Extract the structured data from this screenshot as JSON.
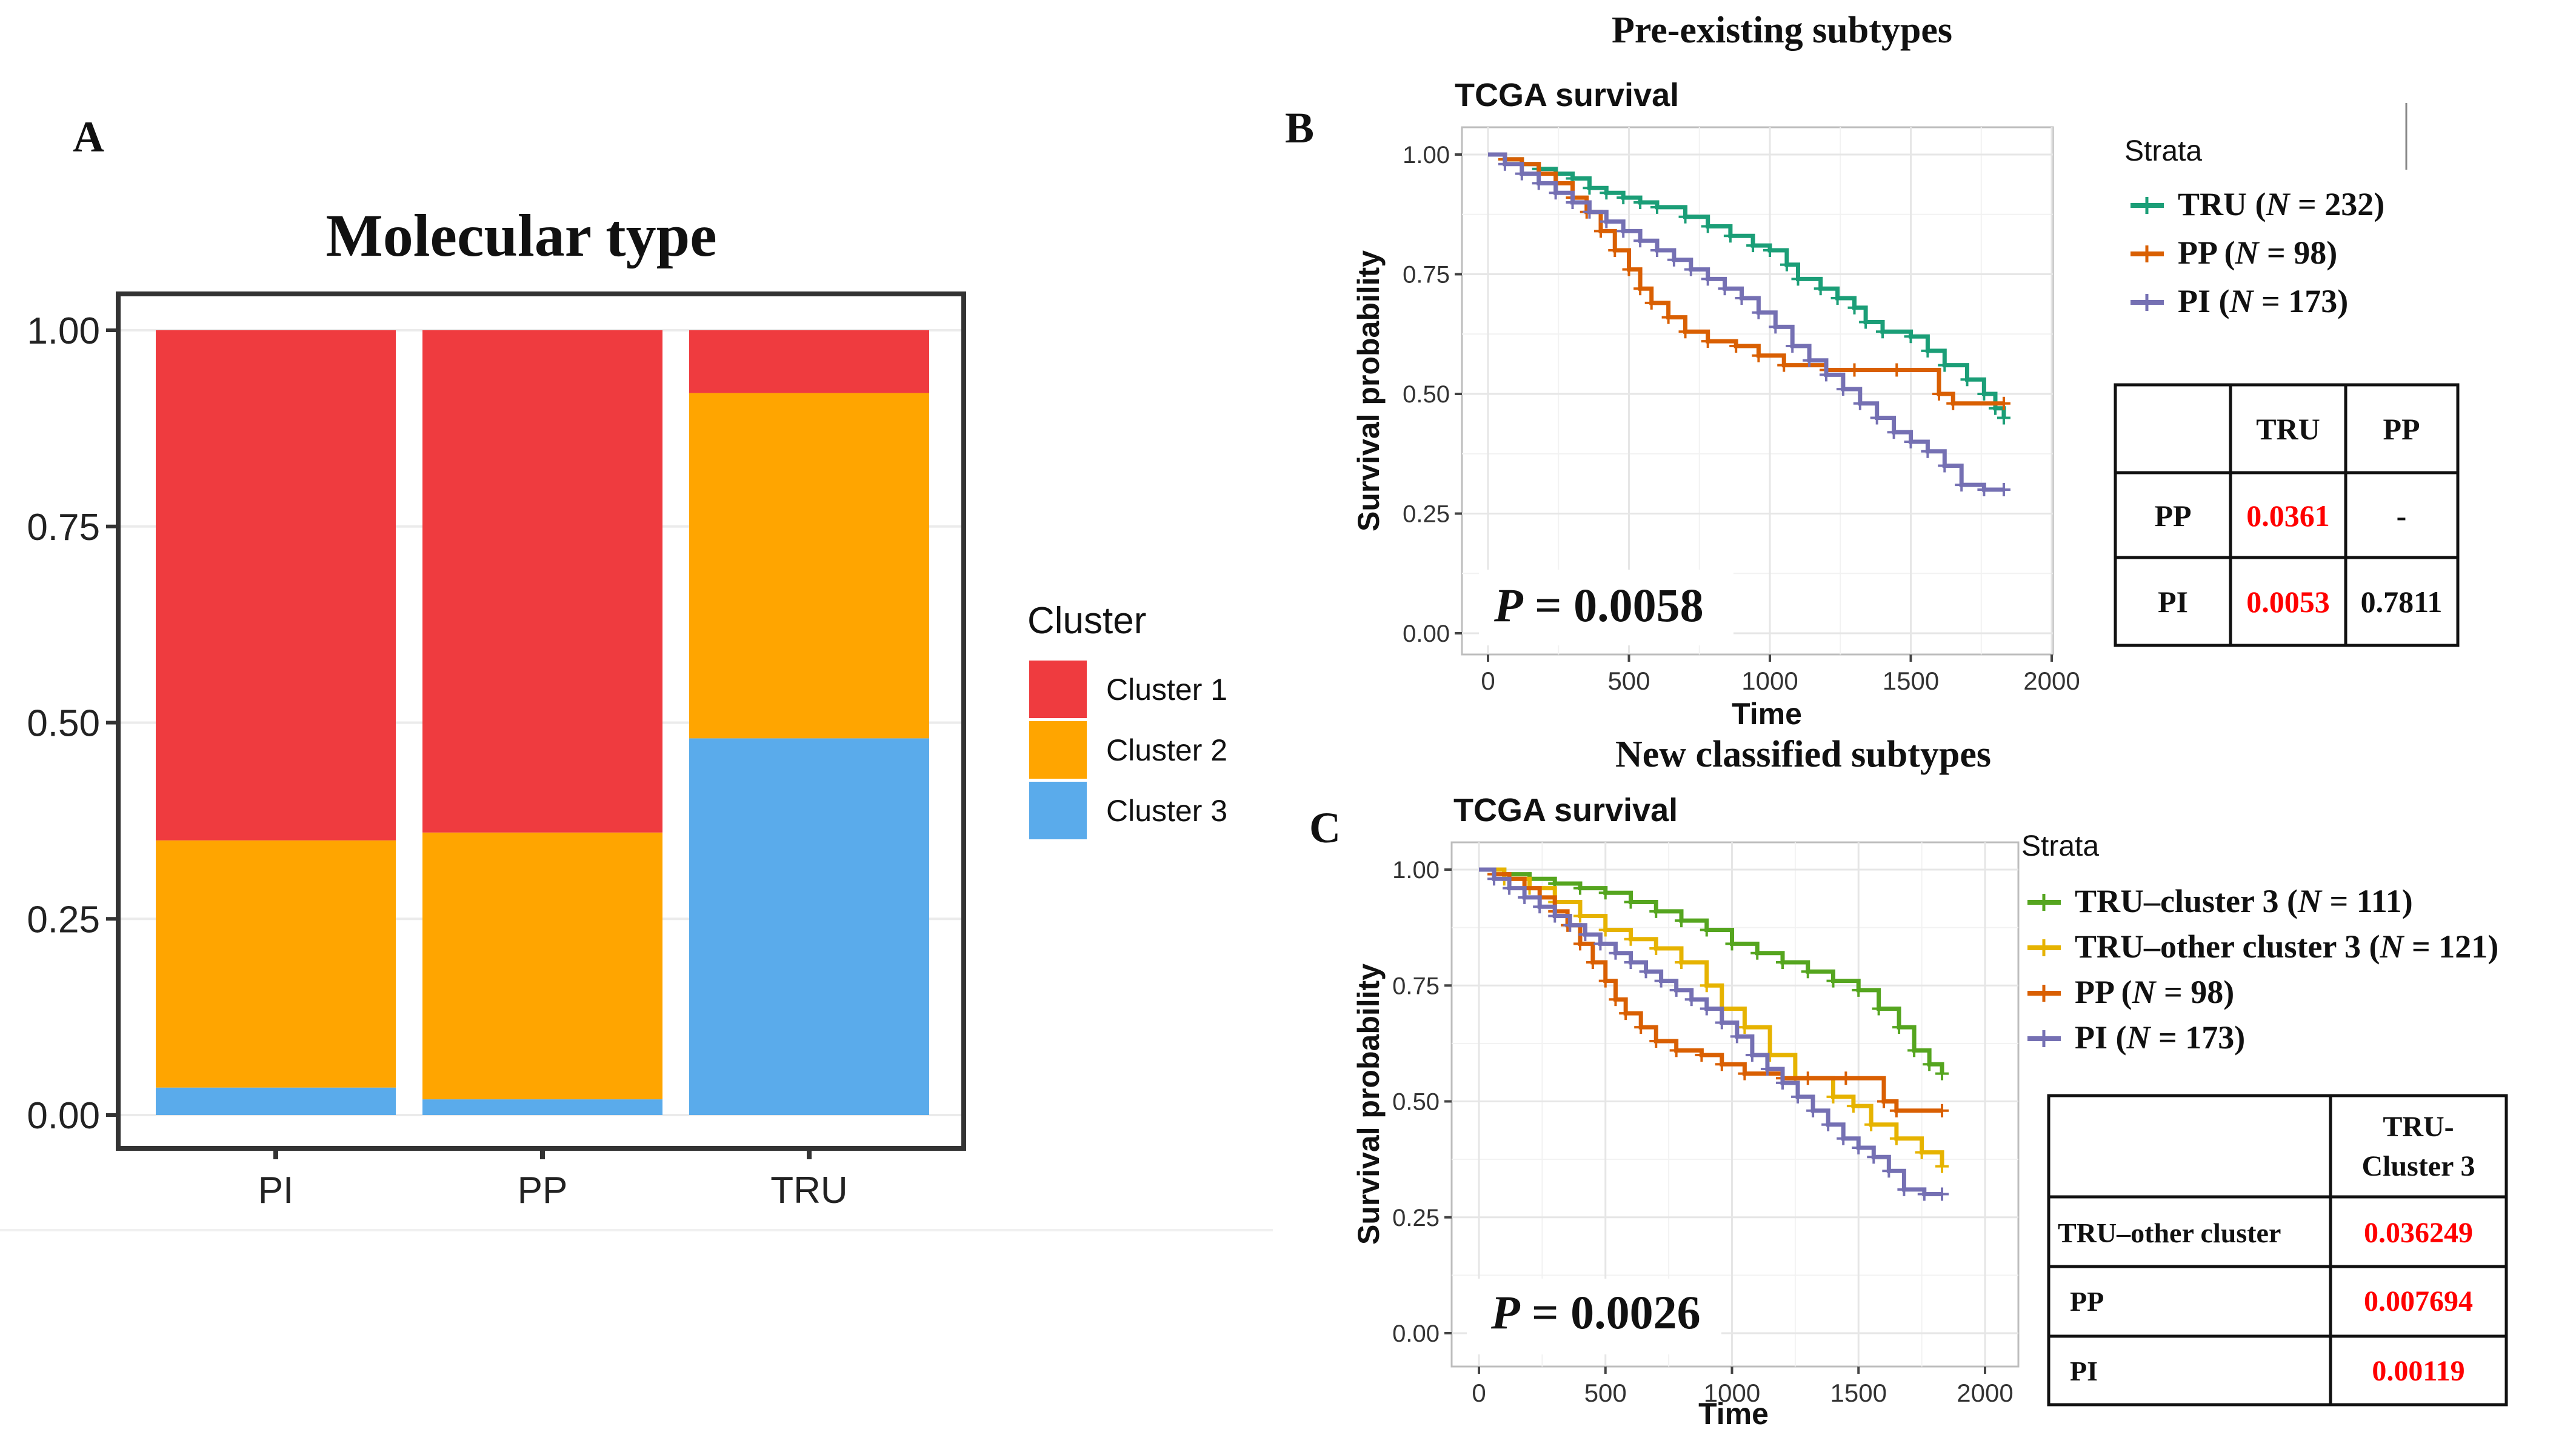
{
  "colors": {
    "cluster1": "#ef3b3f",
    "cluster2": "#ffa500",
    "cluster3": "#5aabeb",
    "tru": "#1b9e77",
    "pp": "#d95f02",
    "pi": "#7570b3",
    "tru_cluster3": "#55a51f",
    "tru_other": "#e6b300",
    "significant": "#ff0000",
    "text": "#111111",
    "grid": "#e6e6e6"
  },
  "panel_a": {
    "letter": "A",
    "title": "Molecular type",
    "legend_title": "Cluster",
    "legend_items": [
      "Cluster 1",
      "Cluster 2",
      "Cluster 3"
    ]
  },
  "panel_b": {
    "letter": "B",
    "header": "Pre-existing subtypes",
    "title": "TCGA  survival",
    "xlabel": "Time",
    "ylabel": "Survival probability",
    "pvalue_label": "P",
    "pvalue": " = 0.0058",
    "strata_title": "Strata",
    "strata": [
      {
        "name": "TRU",
        "n": "232"
      },
      {
        "name": "PP",
        "n": "98"
      },
      {
        "name": "PI",
        "n": "173"
      }
    ],
    "table": {
      "headers": [
        "",
        "TRU",
        "PP"
      ],
      "rows": [
        [
          "PP",
          "0.0361",
          "-"
        ],
        [
          "PI",
          "0.0053",
          "0.7811"
        ]
      ]
    }
  },
  "panel_c": {
    "letter": "C",
    "header": "New classified subtypes",
    "title": "TCGA  survival",
    "xlabel": "Time",
    "ylabel": "Survival probability",
    "pvalue_label": "P",
    "pvalue": " = 0.0026",
    "strata_title": "Strata",
    "strata": [
      {
        "name": "TRU–cluster 3",
        "n": "111"
      },
      {
        "name": "TRU–other cluster 3",
        "n": "121"
      },
      {
        "name": "PP",
        "n": "98"
      },
      {
        "name": "PI",
        "n": "173"
      }
    ],
    "table": {
      "header_line1": "TRU-",
      "header_line2": "Cluster 3",
      "rows": [
        [
          "TRU–other cluster",
          "0.036249"
        ],
        [
          "PP",
          "0.007694"
        ],
        [
          "PI",
          "0.00119"
        ]
      ]
    }
  },
  "chart_data": [
    {
      "type": "bar",
      "stacked": true,
      "title": "Molecular type",
      "xlabel": "",
      "ylabel": "",
      "categories": [
        "PI",
        "PP",
        "TRU"
      ],
      "ylim": [
        0,
        1
      ],
      "yticks": [
        0,
        0.25,
        0.5,
        0.75,
        1
      ],
      "ytick_labels": [
        "0.00",
        "0.25",
        "0.50",
        "0.75",
        "1.00"
      ],
      "series": [
        {
          "name": "Cluster 3",
          "values": [
            0.035,
            0.02,
            0.48
          ]
        },
        {
          "name": "Cluster 2",
          "values": [
            0.315,
            0.34,
            0.44
          ]
        },
        {
          "name": "Cluster 1",
          "values": [
            0.65,
            0.64,
            0.08
          ]
        }
      ],
      "legend": "right"
    },
    {
      "type": "line",
      "step": true,
      "title": "TCGA  survival",
      "xlabel": "Time",
      "ylabel": "Survival probability",
      "xlim": [
        -100,
        2100
      ],
      "ylim": [
        0,
        1.05
      ],
      "xticks": [
        0,
        500,
        1000,
        1500,
        2000
      ],
      "yticks": [
        0,
        0.25,
        0.5,
        0.75,
        1
      ],
      "ytick_labels": [
        "0.00",
        "0.25",
        "0.50",
        "0.75",
        "1.00"
      ],
      "series": [
        {
          "name": "TRU (N = 232)",
          "color": "#1b9e77",
          "x": [
            0,
            60,
            120,
            180,
            240,
            300,
            360,
            420,
            480,
            540,
            600,
            700,
            780,
            860,
            940,
            1000,
            1060,
            1100,
            1180,
            1240,
            1300,
            1340,
            1400,
            1500,
            1560,
            1620,
            1700,
            1760,
            1800,
            1830
          ],
          "y": [
            1.0,
            0.99,
            0.98,
            0.97,
            0.96,
            0.95,
            0.93,
            0.92,
            0.91,
            0.9,
            0.89,
            0.87,
            0.85,
            0.83,
            0.81,
            0.8,
            0.77,
            0.74,
            0.72,
            0.7,
            0.68,
            0.65,
            0.63,
            0.62,
            0.59,
            0.56,
            0.53,
            0.5,
            0.47,
            0.45
          ]
        },
        {
          "name": "PP (N = 98)",
          "color": "#d95f02",
          "x": [
            0,
            60,
            120,
            180,
            240,
            300,
            350,
            400,
            450,
            500,
            540,
            580,
            640,
            700,
            780,
            880,
            960,
            1050,
            1200,
            1300,
            1450,
            1600,
            1650,
            1830
          ],
          "y": [
            1.0,
            0.99,
            0.98,
            0.96,
            0.94,
            0.91,
            0.88,
            0.84,
            0.8,
            0.76,
            0.72,
            0.69,
            0.66,
            0.63,
            0.61,
            0.6,
            0.58,
            0.56,
            0.55,
            0.55,
            0.55,
            0.5,
            0.48,
            0.48
          ]
        },
        {
          "name": "PI (N = 173)",
          "color": "#7570b3",
          "x": [
            0,
            60,
            120,
            180,
            240,
            300,
            360,
            420,
            480,
            540,
            600,
            660,
            720,
            780,
            840,
            900,
            960,
            1020,
            1080,
            1140,
            1200,
            1260,
            1320,
            1380,
            1440,
            1500,
            1560,
            1620,
            1680,
            1760,
            1830
          ],
          "y": [
            1.0,
            0.98,
            0.96,
            0.94,
            0.92,
            0.9,
            0.88,
            0.86,
            0.84,
            0.82,
            0.8,
            0.78,
            0.76,
            0.74,
            0.72,
            0.7,
            0.67,
            0.64,
            0.6,
            0.57,
            0.54,
            0.51,
            0.48,
            0.45,
            0.42,
            0.4,
            0.38,
            0.35,
            0.31,
            0.3,
            0.3
          ]
        }
      ],
      "annotation": "P = 0.0058"
    },
    {
      "type": "line",
      "step": true,
      "title": "TCGA  survival",
      "xlabel": "Time",
      "ylabel": "Survival probability",
      "xlim": [
        -100,
        2100
      ],
      "ylim": [
        0,
        1.05
      ],
      "xticks": [
        0,
        500,
        1000,
        1500,
        2000
      ],
      "yticks": [
        0,
        0.25,
        0.5,
        0.75,
        1
      ],
      "ytick_labels": [
        "0.00",
        "0.25",
        "0.50",
        "0.75",
        "1.00"
      ],
      "series": [
        {
          "name": "TRU–cluster 3 (N = 111)",
          "color": "#55a51f",
          "x": [
            0,
            100,
            200,
            300,
            400,
            500,
            600,
            700,
            800,
            900,
            1000,
            1100,
            1200,
            1300,
            1400,
            1500,
            1580,
            1660,
            1720,
            1780,
            1830
          ],
          "y": [
            1.0,
            0.99,
            0.98,
            0.97,
            0.96,
            0.95,
            0.93,
            0.91,
            0.89,
            0.87,
            0.84,
            0.82,
            0.8,
            0.78,
            0.76,
            0.74,
            0.7,
            0.66,
            0.61,
            0.58,
            0.56
          ]
        },
        {
          "name": "TRU–other cluster 3 (N = 121)",
          "color": "#e6b300",
          "x": [
            0,
            100,
            200,
            300,
            400,
            500,
            600,
            700,
            800,
            900,
            960,
            1050,
            1150,
            1250,
            1400,
            1480,
            1550,
            1650,
            1750,
            1830
          ],
          "y": [
            1.0,
            0.98,
            0.96,
            0.93,
            0.9,
            0.87,
            0.85,
            0.83,
            0.8,
            0.75,
            0.7,
            0.66,
            0.6,
            0.55,
            0.51,
            0.49,
            0.45,
            0.42,
            0.39,
            0.36
          ]
        },
        {
          "name": "PP (N = 98)",
          "color": "#d95f02",
          "x": [
            0,
            60,
            120,
            180,
            240,
            300,
            350,
            400,
            450,
            500,
            540,
            580,
            640,
            700,
            780,
            880,
            960,
            1050,
            1200,
            1300,
            1450,
            1600,
            1650,
            1830
          ],
          "y": [
            1.0,
            0.99,
            0.98,
            0.96,
            0.94,
            0.91,
            0.88,
            0.84,
            0.8,
            0.76,
            0.72,
            0.69,
            0.66,
            0.63,
            0.61,
            0.6,
            0.58,
            0.56,
            0.55,
            0.55,
            0.55,
            0.5,
            0.48,
            0.48
          ]
        },
        {
          "name": "PI (N = 173)",
          "color": "#7570b3",
          "x": [
            0,
            60,
            120,
            180,
            240,
            300,
            360,
            420,
            480,
            540,
            600,
            660,
            720,
            780,
            840,
            900,
            960,
            1020,
            1080,
            1140,
            1200,
            1260,
            1320,
            1380,
            1440,
            1500,
            1560,
            1620,
            1680,
            1760,
            1830
          ],
          "y": [
            1.0,
            0.98,
            0.96,
            0.94,
            0.92,
            0.9,
            0.88,
            0.86,
            0.84,
            0.82,
            0.8,
            0.78,
            0.76,
            0.74,
            0.72,
            0.7,
            0.67,
            0.64,
            0.6,
            0.57,
            0.54,
            0.51,
            0.48,
            0.45,
            0.42,
            0.4,
            0.38,
            0.35,
            0.31,
            0.3,
            0.3
          ]
        }
      ],
      "annotation": "P = 0.0026"
    }
  ]
}
